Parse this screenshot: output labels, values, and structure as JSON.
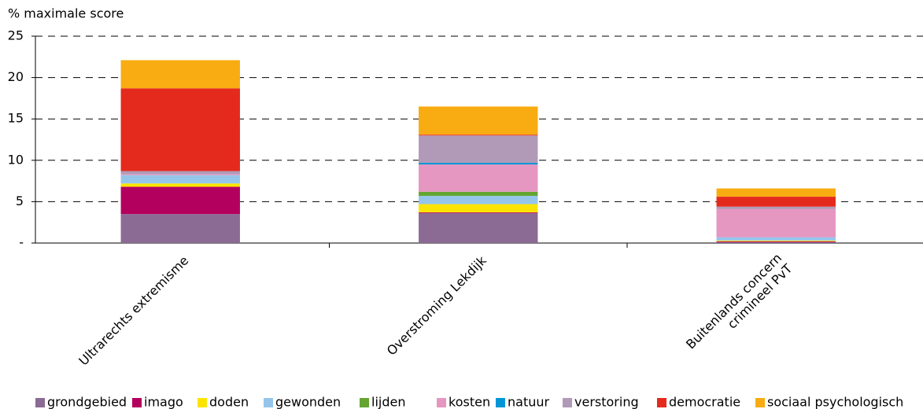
{
  "chart_data": {
    "type": "stacked-bar",
    "y_label": "% maximale score",
    "categories": [
      "Ultrarechts extremisme",
      "Overstroming Lekdijk",
      "Buitenlands concern\ncrimineel PvT"
    ],
    "series": [
      {
        "name": "grondgebied",
        "color": "#8b6b94",
        "values": [
          3.5,
          3.6,
          0.1
        ]
      },
      {
        "name": "imago",
        "color": "#b3005f",
        "values": [
          3.3,
          0.1,
          0.1
        ]
      },
      {
        "name": "doden",
        "color": "#fde400",
        "values": [
          0.4,
          1.0,
          0.1
        ]
      },
      {
        "name": "gewonden",
        "color": "#95c6ea",
        "values": [
          1.0,
          1.0,
          0.4
        ]
      },
      {
        "name": "lijden",
        "color": "#64a531",
        "values": [
          0,
          0.5,
          0
        ]
      },
      {
        "name": "kosten",
        "color": "#e596c1",
        "values": [
          0.1,
          3.3,
          3.4
        ]
      },
      {
        "name": "natuur",
        "color": "#0096d6",
        "values": [
          0,
          0.2,
          0
        ]
      },
      {
        "name": "verstoring",
        "color": "#b19ab8",
        "values": [
          0.4,
          3.3,
          0.3
        ]
      },
      {
        "name": "democratie",
        "color": "#e42a1d",
        "values": [
          10.0,
          0.1,
          1.2
        ]
      },
      {
        "name": "sociaal psychologisch",
        "color": "#f8ac12",
        "values": [
          3.4,
          3.4,
          1.0
        ]
      }
    ],
    "ylim": [
      0,
      25
    ],
    "yticks": [
      {
        "value": 0,
        "label": "-"
      },
      5,
      10,
      15,
      20,
      25
    ],
    "grid": true
  }
}
